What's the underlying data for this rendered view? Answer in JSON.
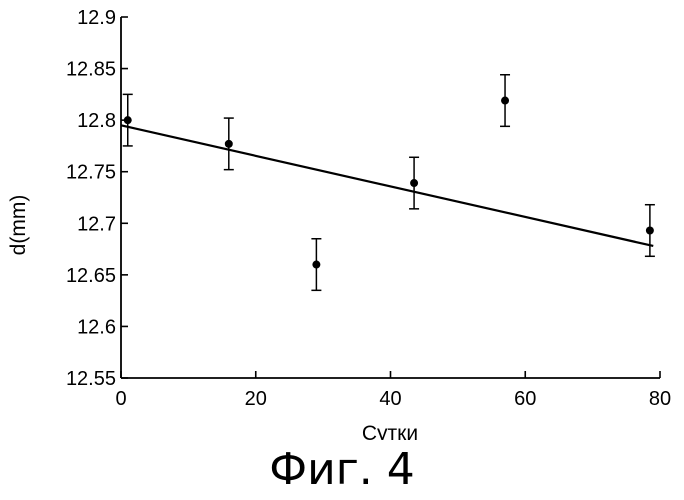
{
  "chart_data": {
    "type": "scatter",
    "xlabel": "Сутки",
    "ylabel": "d(mm)",
    "xlim": [
      0,
      80
    ],
    "ylim": [
      12.55,
      12.9
    ],
    "xticks": [
      0,
      20,
      40,
      60,
      80
    ],
    "yticks": [
      12.55,
      12.6,
      12.65,
      12.7,
      12.75,
      12.8,
      12.85,
      12.9
    ],
    "xtick_labels": [
      "0",
      "20",
      "40",
      "60",
      "80"
    ],
    "ytick_labels": [
      "12.55",
      "12.6",
      "12.65",
      "12.7",
      "12.75",
      "12.8",
      "12.85",
      "12.9"
    ],
    "points": [
      {
        "x": 1,
        "y": 12.8,
        "err": 0.025
      },
      {
        "x": 16,
        "y": 12.777,
        "err": 0.025
      },
      {
        "x": 29,
        "y": 12.66,
        "err": 0.025
      },
      {
        "x": 43.5,
        "y": 12.739,
        "err": 0.025
      },
      {
        "x": 57,
        "y": 12.819,
        "err": 0.025
      },
      {
        "x": 78.5,
        "y": 12.693,
        "err": 0.025
      }
    ],
    "fit_line": {
      "x": [
        0,
        79
      ],
      "y": [
        12.795,
        12.678
      ]
    },
    "grid": false
  },
  "caption": "Фиг. 4"
}
